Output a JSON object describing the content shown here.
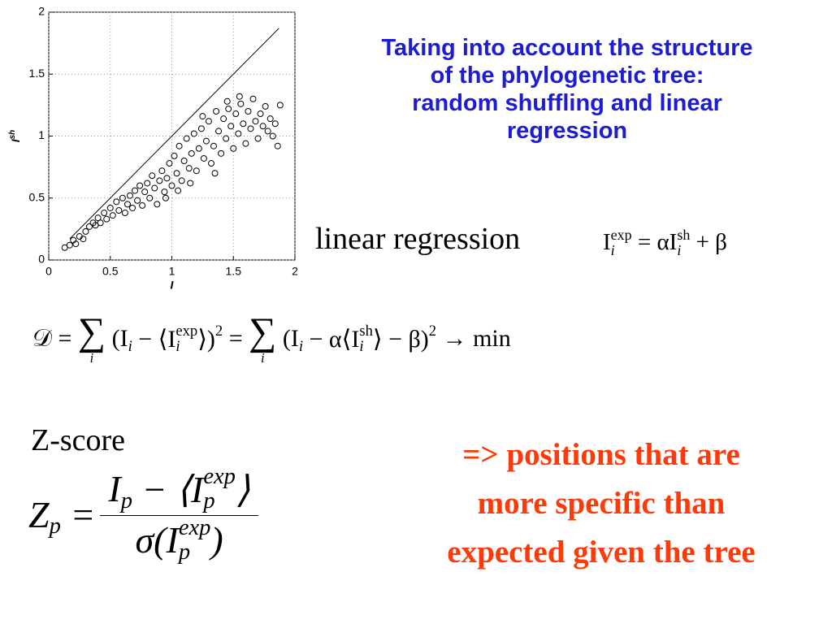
{
  "chart_data": {
    "type": "scatter",
    "x_label": "I",
    "y_label": "I",
    "y_label_sup": "sh",
    "xlim": [
      0,
      2
    ],
    "ylim": [
      0,
      2
    ],
    "xticks": [
      0,
      0.5,
      1,
      1.5,
      2
    ],
    "yticks": [
      0,
      0.5,
      1,
      1.5,
      2
    ],
    "grid": true,
    "color": "#000000",
    "line_x": [
      0.17,
      1.87
    ],
    "line_y": [
      0.17,
      1.87
    ],
    "x": [
      0.13,
      0.17,
      0.2,
      0.22,
      0.25,
      0.28,
      0.3,
      0.33,
      0.36,
      0.38,
      0.4,
      0.42,
      0.45,
      0.47,
      0.5,
      0.52,
      0.55,
      0.57,
      0.6,
      0.62,
      0.64,
      0.66,
      0.68,
      0.7,
      0.72,
      0.74,
      0.76,
      0.78,
      0.8,
      0.82,
      0.84,
      0.86,
      0.88,
      0.9,
      0.92,
      0.94,
      0.96,
      0.98,
      1.0,
      1.02,
      1.04,
      1.06,
      1.08,
      1.1,
      1.12,
      1.14,
      1.16,
      1.18,
      1.2,
      1.22,
      1.24,
      1.26,
      1.28,
      1.3,
      1.32,
      1.34,
      1.36,
      1.38,
      1.4,
      1.42,
      1.44,
      1.46,
      1.48,
      1.5,
      1.52,
      1.54,
      1.56,
      1.58,
      1.6,
      1.62,
      1.64,
      1.66,
      1.68,
      1.7,
      1.72,
      1.74,
      1.76,
      1.78,
      1.8,
      1.82,
      1.84,
      1.86,
      1.88,
      1.25,
      1.45,
      1.55,
      1.35,
      1.15,
      0.95,
      1.05
    ],
    "y": [
      0.1,
      0.12,
      0.16,
      0.13,
      0.19,
      0.17,
      0.23,
      0.27,
      0.3,
      0.28,
      0.34,
      0.3,
      0.38,
      0.33,
      0.42,
      0.36,
      0.47,
      0.4,
      0.5,
      0.38,
      0.45,
      0.52,
      0.42,
      0.56,
      0.48,
      0.6,
      0.44,
      0.55,
      0.62,
      0.5,
      0.68,
      0.58,
      0.45,
      0.64,
      0.72,
      0.55,
      0.66,
      0.78,
      0.6,
      0.84,
      0.7,
      0.92,
      0.64,
      0.8,
      0.98,
      0.74,
      0.86,
      1.02,
      0.72,
      0.9,
      1.06,
      0.82,
      0.96,
      1.12,
      0.78,
      0.92,
      1.2,
      1.04,
      0.86,
      1.14,
      0.98,
      1.22,
      1.08,
      0.9,
      1.18,
      1.02,
      1.26,
      1.1,
      0.94,
      1.2,
      1.06,
      1.3,
      1.12,
      0.98,
      1.18,
      1.08,
      1.24,
      1.04,
      1.14,
      1.0,
      1.1,
      0.92,
      1.25,
      1.16,
      1.28,
      1.32,
      0.7,
      0.62,
      0.5,
      0.56
    ]
  },
  "title_lines": [
    "Taking into account the structure",
    "of the phylogenetic tree:",
    "random shuffling and linear",
    "regression"
  ],
  "regression_label": "linear regression",
  "regression_formula": [
    {
      "t": "I",
      "sub": "i",
      "sup": "exp"
    },
    {
      "t": " = αI",
      "sub": "i",
      "sup": "sh"
    },
    {
      "t": " + β"
    }
  ],
  "objective_formula": [
    {
      "t": "𝒟 = "
    },
    {
      "t": "∑",
      "under": "i"
    },
    {
      "t": " (I",
      "sub": "i"
    },
    {
      "t": " − ⟨I",
      "sub": "i",
      "sup": "exp"
    },
    {
      "t": "⟩)",
      "sup": "2"
    },
    {
      "t": " = "
    },
    {
      "t": "∑",
      "under": "i"
    },
    {
      "t": " (I",
      "sub": "i"
    },
    {
      "t": " − α⟨I",
      "sub": "i",
      "sup": "sh"
    },
    {
      "t": "⟩ − β)",
      "sup": "2"
    },
    {
      "t": " → min"
    }
  ],
  "zscore_label": "Z-score",
  "zscore_lhs": [
    {
      "t": "Z",
      "sub": "p"
    },
    {
      "t": " ="
    }
  ],
  "zscore_numerator": [
    {
      "t": "I",
      "sub": "p"
    },
    {
      "t": " − ⟨I",
      "sub": "p",
      "sup": "exp"
    },
    {
      "t": "⟩"
    }
  ],
  "zscore_denominator": [
    {
      "t": "σ(I",
      "sub": "p",
      "sup": "exp"
    },
    {
      "t": ")"
    }
  ],
  "conclusion_lines": [
    "=> positions that are",
    "more specific than",
    "expected given the tree"
  ]
}
